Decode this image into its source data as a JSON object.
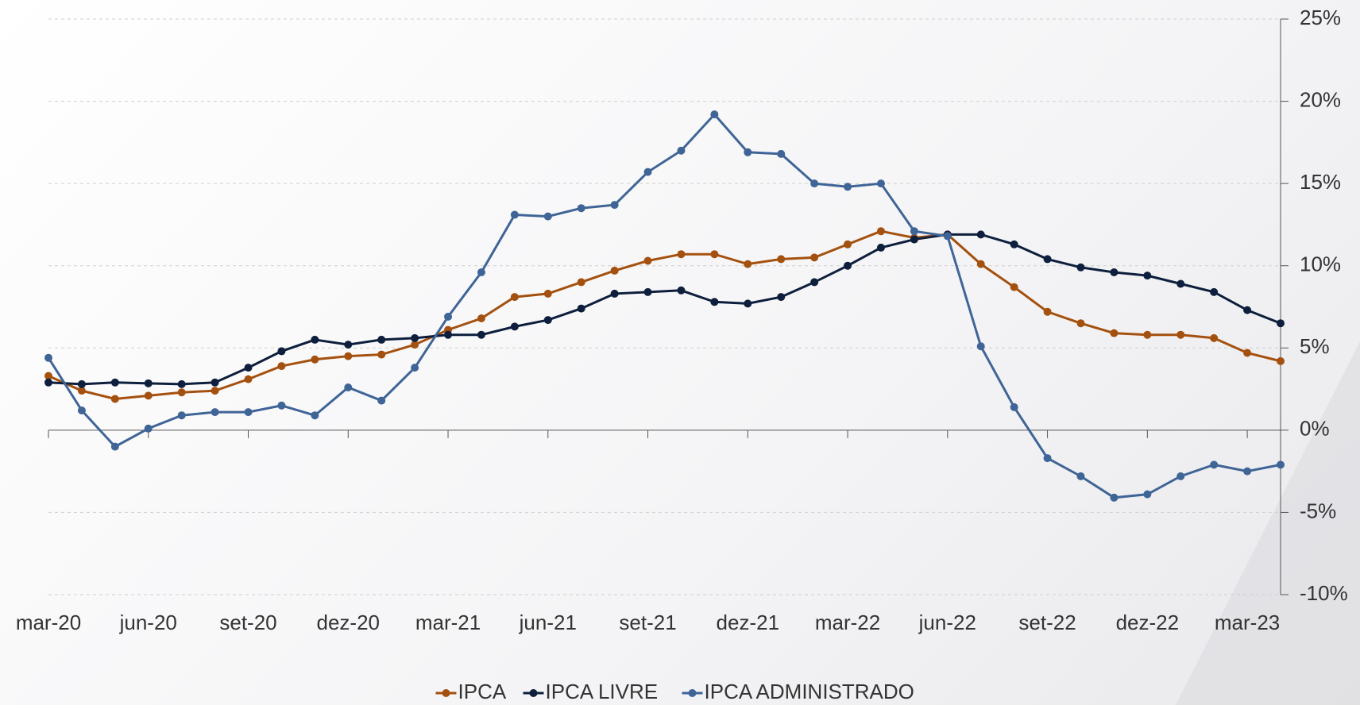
{
  "chart_data": {
    "type": "line",
    "categories": [
      "mar-20",
      null,
      null,
      "jun-20",
      null,
      null,
      "set-20",
      null,
      null,
      "dez-20",
      null,
      null,
      "mar-21",
      null,
      null,
      "jun-21",
      null,
      null,
      "set-21",
      null,
      null,
      "dez-21",
      null,
      null,
      "mar-22",
      null,
      null,
      "jun-22",
      null,
      null,
      "set-22",
      null,
      null,
      "dez-22",
      null,
      null,
      "mar-23",
      null
    ],
    "series": [
      {
        "name": "IPCA",
        "color": "#a4510f",
        "values": [
          3.3,
          2.4,
          1.9,
          2.1,
          2.3,
          2.4,
          3.1,
          3.9,
          4.3,
          4.5,
          4.6,
          5.2,
          6.1,
          6.8,
          8.1,
          8.3,
          9.0,
          9.7,
          10.3,
          10.7,
          10.7,
          10.1,
          10.4,
          10.5,
          11.3,
          12.1,
          11.7,
          11.9,
          10.1,
          8.7,
          7.2,
          6.5,
          5.9,
          5.8,
          5.8,
          5.6,
          4.7,
          4.2
        ]
      },
      {
        "name": "IPCA LIVRE",
        "color": "#0d1f3c",
        "values": [
          2.9,
          2.8,
          2.9,
          2.85,
          2.8,
          2.9,
          3.8,
          4.8,
          5.5,
          5.2,
          5.5,
          5.6,
          5.8,
          5.8,
          6.3,
          6.7,
          7.4,
          8.3,
          8.4,
          8.5,
          7.8,
          7.7,
          8.1,
          9.0,
          10.0,
          11.1,
          11.6,
          11.9,
          11.9,
          11.3,
          10.4,
          9.9,
          9.6,
          9.4,
          8.9,
          8.4,
          7.3,
          6.5
        ]
      },
      {
        "name": "IPCA ADMINISTRADO",
        "color": "#3f6496",
        "values": [
          4.4,
          1.2,
          -1.0,
          0.1,
          0.9,
          1.1,
          1.1,
          1.5,
          0.9,
          2.6,
          1.8,
          3.8,
          6.9,
          9.6,
          13.1,
          13.0,
          13.5,
          13.7,
          15.7,
          17.0,
          19.2,
          16.9,
          16.8,
          15.0,
          14.8,
          15.0,
          12.1,
          11.8,
          5.1,
          1.4,
          -1.7,
          -2.8,
          -4.1,
          -3.9,
          -2.8,
          -2.1,
          -2.5,
          -2.1
        ]
      }
    ],
    "ylim": [
      -10,
      25
    ],
    "yticks": [
      {
        "value": -10,
        "label": "-10%"
      },
      {
        "value": -5,
        "label": "-5%"
      },
      {
        "value": 0,
        "label": "0%"
      },
      {
        "value": 5,
        "label": "5%"
      },
      {
        "value": 10,
        "label": "10%"
      },
      {
        "value": 15,
        "label": "15%"
      },
      {
        "value": 20,
        "label": "20%"
      },
      {
        "value": 25,
        "label": "25%"
      }
    ],
    "grid": true,
    "legend": "bottom"
  }
}
